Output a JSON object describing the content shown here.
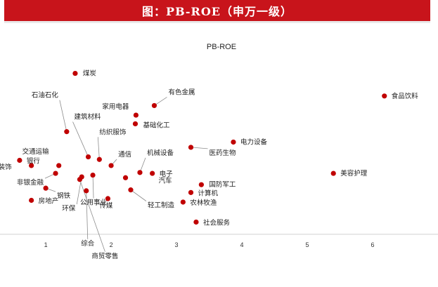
{
  "header": {
    "title": "图：PB-ROE（申万一级）"
  },
  "chart_data": {
    "type": "scatter",
    "title": "PB-ROE",
    "xlim": [
      0.3,
      7.0
    ],
    "ylim": [
      -3.0,
      20.0
    ],
    "x_ticks": [
      "1",
      "2",
      "3",
      "4",
      "5",
      "6"
    ],
    "grid": false,
    "legend": "none",
    "point_color": "#c00000",
    "points": [
      {
        "name": "煤炭",
        "x": 1.45,
        "y": 18.5
      },
      {
        "name": "食品饮料",
        "x": 6.18,
        "y": 15.9
      },
      {
        "name": "有色金属",
        "x": 2.66,
        "y": 14.8
      },
      {
        "name": "家用电器",
        "x": 2.38,
        "y": 13.7
      },
      {
        "name": "石油石化",
        "x": 1.32,
        "y": 11.8
      },
      {
        "name": "基础化工",
        "x": 2.37,
        "y": 12.7
      },
      {
        "name": "电力设备",
        "x": 3.87,
        "y": 10.6
      },
      {
        "name": "建筑材料",
        "x": 1.65,
        "y": 8.9
      },
      {
        "name": "医药生物",
        "x": 3.22,
        "y": 10.0
      },
      {
        "name": "纺织服饰",
        "x": 1.82,
        "y": 8.6
      },
      {
        "name": "银行",
        "x": 0.6,
        "y": 8.5
      },
      {
        "name": "交通运输",
        "x": 1.2,
        "y": 7.9
      },
      {
        "name": "通信",
        "x": 2.0,
        "y": 7.9
      },
      {
        "name": "机械设备",
        "x": 2.44,
        "y": 7.1
      },
      {
        "name": "建筑装饰",
        "x": 0.78,
        "y": 7.9
      },
      {
        "name": "电子",
        "x": 2.63,
        "y": 7.0
      },
      {
        "name": "美容护理",
        "x": 5.4,
        "y": 7.0
      },
      {
        "name": "非银金融",
        "x": 1.15,
        "y": 7.0
      },
      {
        "name": "汽车",
        "x": 2.22,
        "y": 6.5
      },
      {
        "name": "国防军工",
        "x": 3.38,
        "y": 5.7
      },
      {
        "name": "钢铁",
        "x": 1.0,
        "y": 5.3
      },
      {
        "name": "环保",
        "x": 1.55,
        "y": 6.6
      },
      {
        "name": "公用事业",
        "x": 1.72,
        "y": 6.8
      },
      {
        "name": "计算机",
        "x": 3.22,
        "y": 4.8
      },
      {
        "name": "轻工制造",
        "x": 2.3,
        "y": 5.1
      },
      {
        "name": "房地产",
        "x": 0.78,
        "y": 3.9
      },
      {
        "name": "传媒",
        "x": 1.95,
        "y": 4.1
      },
      {
        "name": "农林牧渔",
        "x": 3.1,
        "y": 3.7
      },
      {
        "name": "综合",
        "x": 1.62,
        "y": 5.0
      },
      {
        "name": "社会服务",
        "x": 3.3,
        "y": 1.4
      },
      {
        "name": "商贸零售",
        "x": 1.52,
        "y": 6.3
      }
    ]
  }
}
